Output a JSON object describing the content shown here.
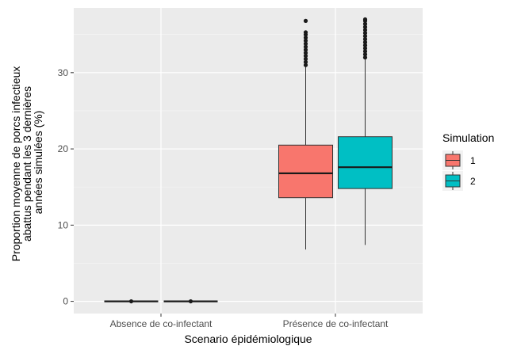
{
  "chart_data": {
    "type": "boxplot",
    "title": "",
    "xlabel": "Scenario épidémiologique",
    "ylabel_lines": [
      "Proportion moyenne de porcs infectieux",
      "abattus pendant les 3 dernières",
      "années simulées (%)"
    ],
    "categories": [
      "Absence de co-infectant",
      "Présence de co-infectant"
    ],
    "ylim": [
      -1.6,
      38.5
    ],
    "yticks": [
      0,
      10,
      20,
      30
    ],
    "grid": true,
    "legend_position": "right",
    "legend_title": "Simulation",
    "series": [
      {
        "name": "1",
        "color": "#F8766D",
        "boxes": [
          {
            "category": "Absence de co-infectant",
            "min": 0,
            "q1": 0,
            "median": 0,
            "q3": 0,
            "max": 0,
            "outliers": [
              0
            ]
          },
          {
            "category": "Présence de co-infectant",
            "min": 6.8,
            "q1": 13.6,
            "median": 16.8,
            "q3": 20.5,
            "max": 30.8,
            "outliers": [
              31.0,
              31.4,
              31.8,
              32.2,
              32.6,
              33.0,
              33.4,
              33.8,
              34.2,
              34.6,
              35.0,
              35.3,
              36.8
            ]
          }
        ]
      },
      {
        "name": "2",
        "color": "#00BFC4",
        "boxes": [
          {
            "category": "Absence de co-infectant",
            "min": 0,
            "q1": 0,
            "median": 0,
            "q3": 0,
            "max": 0,
            "outliers": [
              0
            ]
          },
          {
            "category": "Présence de co-infectant",
            "min": 7.4,
            "q1": 14.8,
            "median": 17.6,
            "q3": 21.6,
            "max": 31.8,
            "outliers": [
              32.0,
              32.4,
              32.8,
              33.2,
              33.6,
              34.0,
              34.4,
              34.8,
              35.2,
              35.6,
              36.0,
              36.4,
              36.8,
              37.0
            ]
          }
        ]
      }
    ]
  }
}
